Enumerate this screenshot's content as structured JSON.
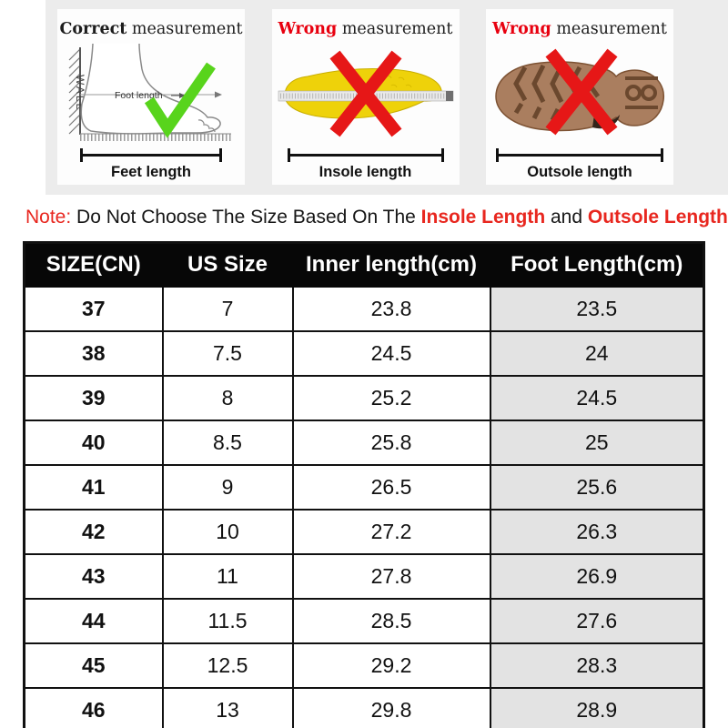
{
  "guide": {
    "background": "#ececec",
    "panels": [
      {
        "title_word": "Correct",
        "title_rest": " measurement",
        "title_word_color": "#1d1d1d",
        "mark_icon": "check-icon",
        "mark_color": "#58d41c",
        "subject_icon": "foot-wall-diagram-icon",
        "wall_label": "WALL",
        "measure_label": "Foot length",
        "caption": "Feet length"
      },
      {
        "title_word": "Wrong",
        "title_rest": " measurement",
        "title_word_color": "#e8000f",
        "mark_icon": "cross-icon",
        "mark_color": "#e61717",
        "subject_icon": "insole-icon",
        "subject_color": "#eed20a",
        "caption": "Insole length"
      },
      {
        "title_word": "Wrong",
        "title_rest": " measurement",
        "title_word_color": "#e8000f",
        "mark_icon": "cross-icon",
        "mark_color": "#e61717",
        "subject_icon": "outsole-icon",
        "subject_color": "#aa7e5f",
        "caption": "Outsole length"
      }
    ]
  },
  "note": {
    "label": "Note:",
    "text": " Do Not Choose The Size Based On The ",
    "highlight_insole": "Insole Length",
    "conjunction": " and ",
    "highlight_outsole": "Outsole Length",
    "exclamation": "!",
    "accent_color": "#e8271f"
  },
  "size_table": {
    "header_bg": "#070707",
    "header_text_color": "#ffffff",
    "foot_length_col_bg": "#e3e3e3",
    "border_color": "#111111",
    "columns": [
      "SIZE(CN)",
      "US Size",
      "Inner length(cm)",
      "Foot Length(cm)"
    ],
    "rows": [
      [
        "37",
        "7",
        "23.8",
        "23.5"
      ],
      [
        "38",
        "7.5",
        "24.5",
        "24"
      ],
      [
        "39",
        "8",
        "25.2",
        "24.5"
      ],
      [
        "40",
        "8.5",
        "25.8",
        "25"
      ],
      [
        "41",
        "9",
        "26.5",
        "25.6"
      ],
      [
        "42",
        "10",
        "27.2",
        "26.3"
      ],
      [
        "43",
        "11",
        "27.8",
        "26.9"
      ],
      [
        "44",
        "11.5",
        "28.5",
        "27.6"
      ],
      [
        "45",
        "12.5",
        "29.2",
        "28.3"
      ],
      [
        "46",
        "13",
        "29.8",
        "28.9"
      ]
    ]
  }
}
